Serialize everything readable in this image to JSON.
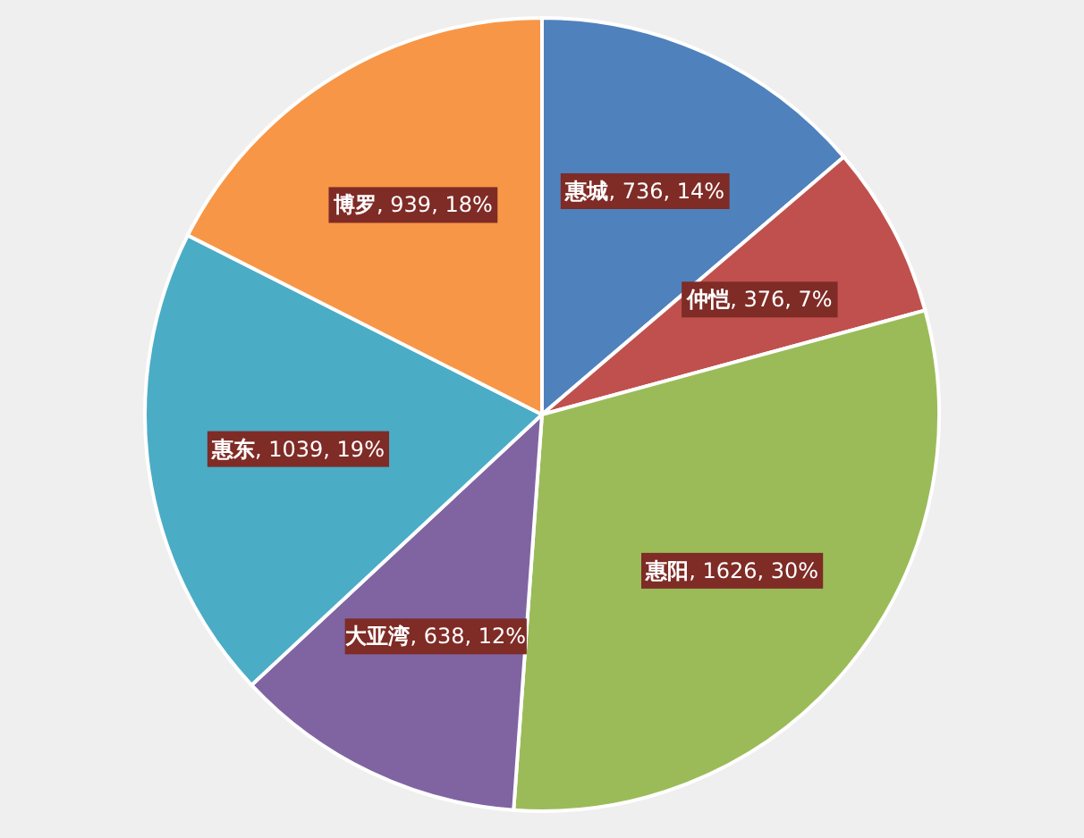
{
  "chart_data": {
    "type": "pie",
    "categories": [
      "惠城",
      "仲恺",
      "惠阳",
      "大亚湾",
      "惠东",
      "博罗"
    ],
    "values": [
      736,
      376,
      1626,
      638,
      1039,
      939
    ],
    "value_labels": [
      ", 736, 14%",
      ", 376, 7%",
      ", 1626, 30%",
      ", 638, 12%",
      ", 1039, 19%",
      ", 939, 18%"
    ],
    "colors": [
      "#4f81bd",
      "#c0504d",
      "#9bbb59",
      "#8064a2",
      "#4bacc6",
      "#f79646"
    ]
  }
}
